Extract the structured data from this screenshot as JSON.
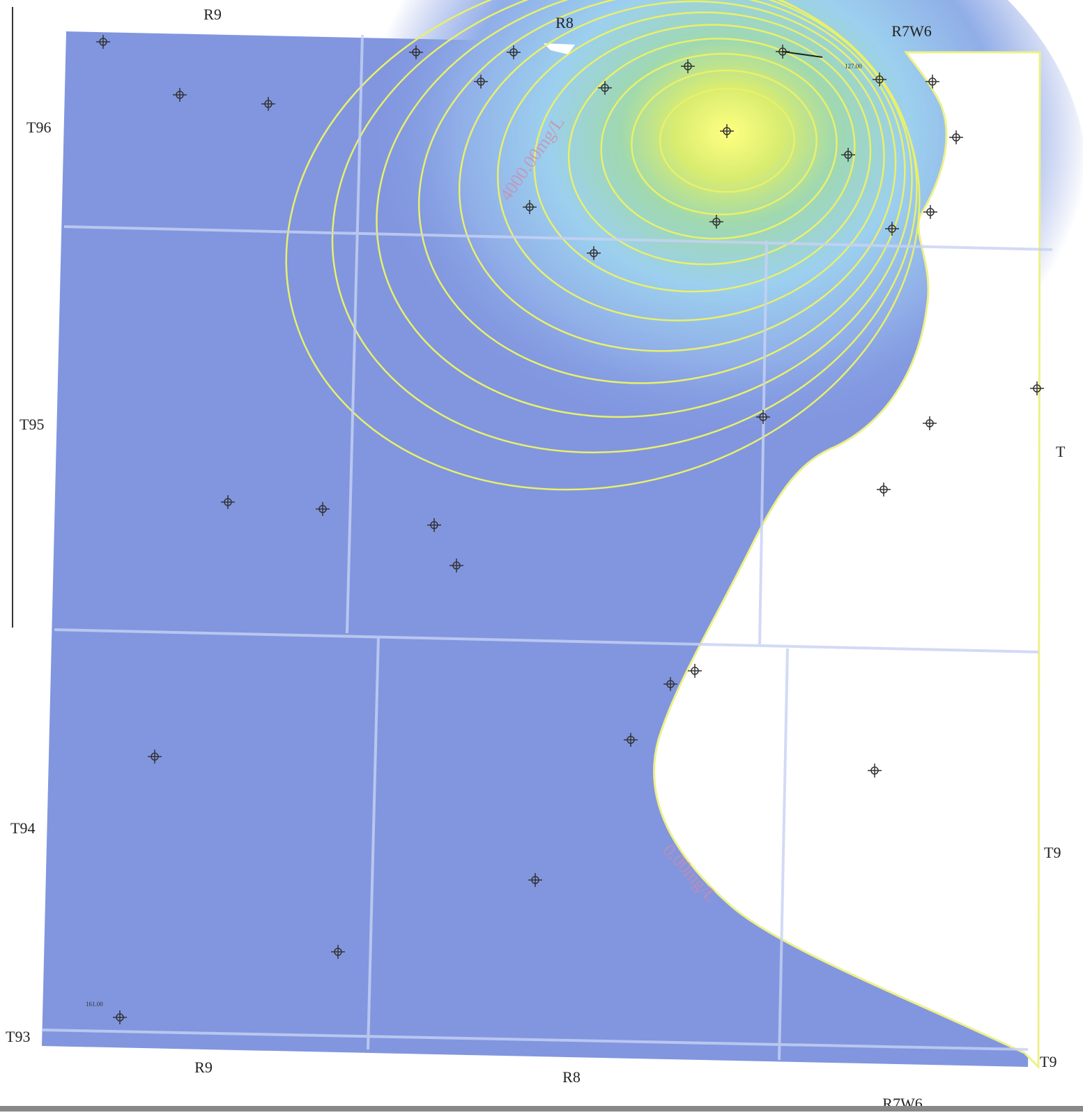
{
  "labels": {
    "top": [
      "R9",
      "R8",
      "R7W6"
    ],
    "bottom": [
      "R9",
      "R8",
      "R7W6"
    ],
    "left": [
      "T96",
      "T95",
      "T94",
      "T93"
    ],
    "right": [
      "T",
      "T9",
      "T9"
    ]
  },
  "well_labels": [
    "127.00",
    "161.00"
  ],
  "contour_labels": [
    "4000.00mg/L",
    "0.00mg/L"
  ]
}
